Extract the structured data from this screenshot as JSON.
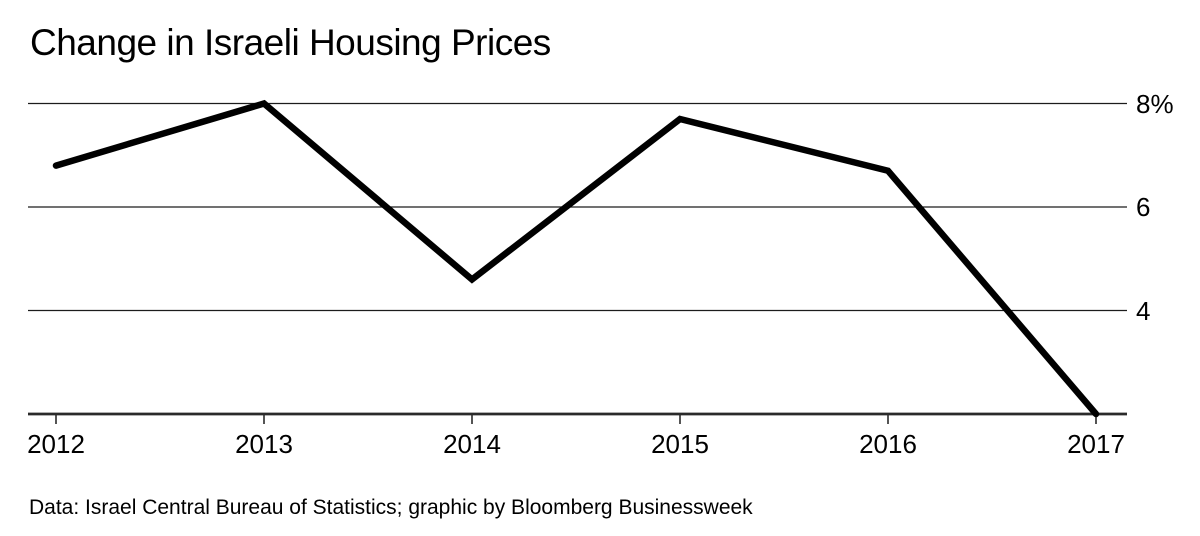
{
  "chart_data": {
    "type": "line",
    "title": "Change in Israeli Housing Prices",
    "x": [
      2012,
      2013,
      2014,
      2015,
      2016,
      2017
    ],
    "x_tick_labels": [
      "2012",
      "2013",
      "2014",
      "2015",
      "2016",
      "2017"
    ],
    "series": [
      {
        "name": "Change in Israeli housing prices (%)",
        "values": [
          6.8,
          8.0,
          4.6,
          7.7,
          6.7,
          2.0
        ]
      }
    ],
    "unit": "%",
    "y_ticks": [
      {
        "value": 8,
        "label": "8%"
      },
      {
        "value": 6,
        "label": "6"
      },
      {
        "value": 4,
        "label": "4"
      }
    ],
    "ylim": [
      2,
      8
    ],
    "xlabel": "",
    "ylabel": "",
    "grid": "horizontal",
    "legend": "none",
    "line_color": "#000000",
    "grid_color": "#1c1c1c",
    "axis_color": "#2a2a2a",
    "background_color": "#ffffff",
    "source": "Data: Israel Central Bureau of Statistics; graphic by Bloomberg Businessweek"
  }
}
